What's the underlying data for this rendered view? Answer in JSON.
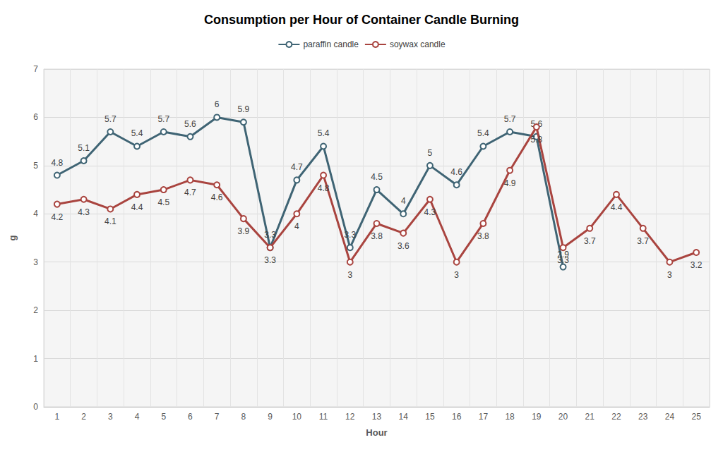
{
  "chart_data": {
    "type": "line",
    "title": "Consumption per Hour of Container Candle Burning",
    "x_label": "Hour",
    "y_label": "g",
    "categories": [
      1,
      2,
      3,
      4,
      5,
      6,
      7,
      8,
      9,
      10,
      11,
      12,
      13,
      14,
      15,
      16,
      17,
      18,
      19,
      20,
      21,
      22,
      23,
      24,
      25
    ],
    "series": [
      {
        "name": "paraffin candle",
        "color": "#3f6474",
        "marker": "circle",
        "values": [
          4.8,
          5.1,
          5.7,
          5.4,
          5.7,
          5.6,
          6,
          5.9,
          3.3,
          4.7,
          5.4,
          3.3,
          4.5,
          4,
          5,
          4.6,
          5.4,
          5.7,
          5.6,
          2.9,
          null,
          null,
          null,
          null,
          null
        ]
      },
      {
        "name": "soywax candle",
        "color": "#a9443f",
        "marker": "circle",
        "values": [
          4.2,
          4.3,
          4.1,
          4.4,
          4.5,
          4.7,
          4.6,
          3.9,
          3.3,
          4,
          4.8,
          3,
          3.8,
          3.6,
          4.3,
          3,
          3.8,
          4.9,
          5.8,
          3.3,
          3.7,
          4.4,
          3.7,
          3,
          3.2
        ]
      }
    ],
    "ylim": [
      0,
      7
    ],
    "yticks": [
      0,
      1,
      2,
      3,
      4,
      5,
      6,
      7
    ],
    "grid": true,
    "legend": "top",
    "data_labels": true
  }
}
